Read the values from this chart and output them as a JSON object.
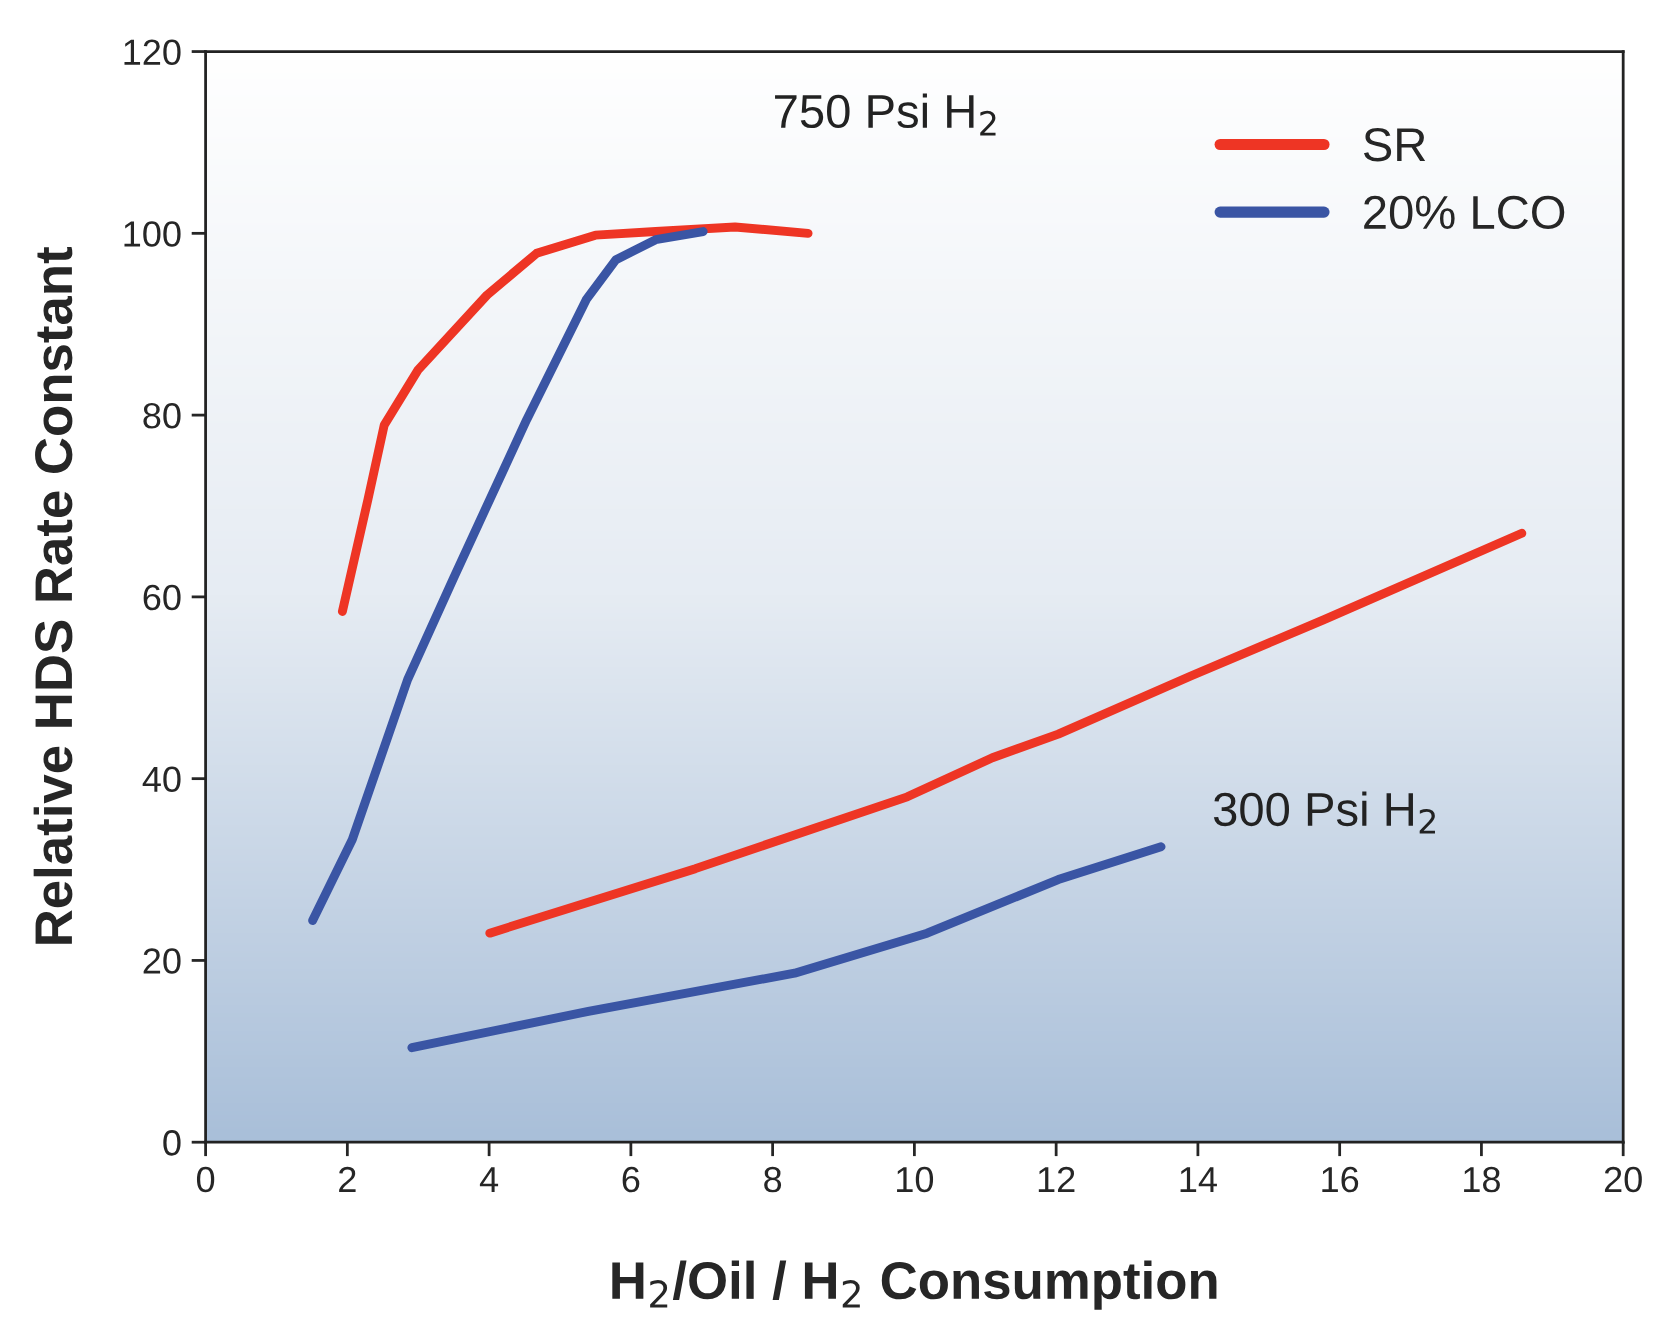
{
  "chart_data": {
    "type": "line",
    "xlabel": "H$_{2}$/Oil / H$_{2}$ Consumption",
    "ylabel": "Relative HDS Rate Constant",
    "annotations": [
      "750 Psi H$_{2}$",
      "300 Psi H$_{2}$"
    ],
    "xlim": [
      0,
      20
    ],
    "xticks": [
      0,
      2,
      4,
      6,
      8,
      10,
      12,
      14,
      16,
      18,
      20
    ],
    "ylim": [
      0,
      120
    ],
    "yticks": [
      0,
      20,
      40,
      60,
      80,
      100,
      120
    ],
    "grid": false,
    "legend": "top right",
    "marker": "none",
    "line_style": "solid",
    "series": [
      {
        "name": "SR",
        "color": "#ee3524",
        "x": [
          1.93,
          2.29,
          2.52,
          3.0,
          3.97,
          4.67,
          5.5,
          6.35,
          7.47,
          8.5
        ],
        "values": [
          58.4,
          70.7,
          78.9,
          85,
          93.2,
          97.8,
          99.8,
          100.2,
          100.7,
          100
        ]
      },
      {
        "name": "20% LCO",
        "color": "#3a55a4",
        "x": [
          1.51,
          2.07,
          2.85,
          3.5,
          4.53,
          5.37,
          5.79,
          6.35,
          7.02
        ],
        "values": [
          24.4,
          33.3,
          50.9,
          62.1,
          79.5,
          92.7,
          97.1,
          99.3,
          100.2
        ]
      },
      {
        "color": "#ee3524",
        "x": [
          4.01,
          6.91,
          9.9,
          11.1,
          12.03,
          13.9,
          15.78,
          18.57
        ],
        "values": [
          23.0,
          30.1,
          38.0,
          42.3,
          44.9,
          51.3,
          57.5,
          67
        ]
      },
      {
        "color": "#3a55a4",
        "x": [
          2.91,
          5.4,
          8.31,
          10.18,
          12.03,
          13.48
        ],
        "values": [
          10.4,
          14.4,
          18.6,
          23.0,
          28.9,
          32.5
        ]
      }
    ]
  }
}
